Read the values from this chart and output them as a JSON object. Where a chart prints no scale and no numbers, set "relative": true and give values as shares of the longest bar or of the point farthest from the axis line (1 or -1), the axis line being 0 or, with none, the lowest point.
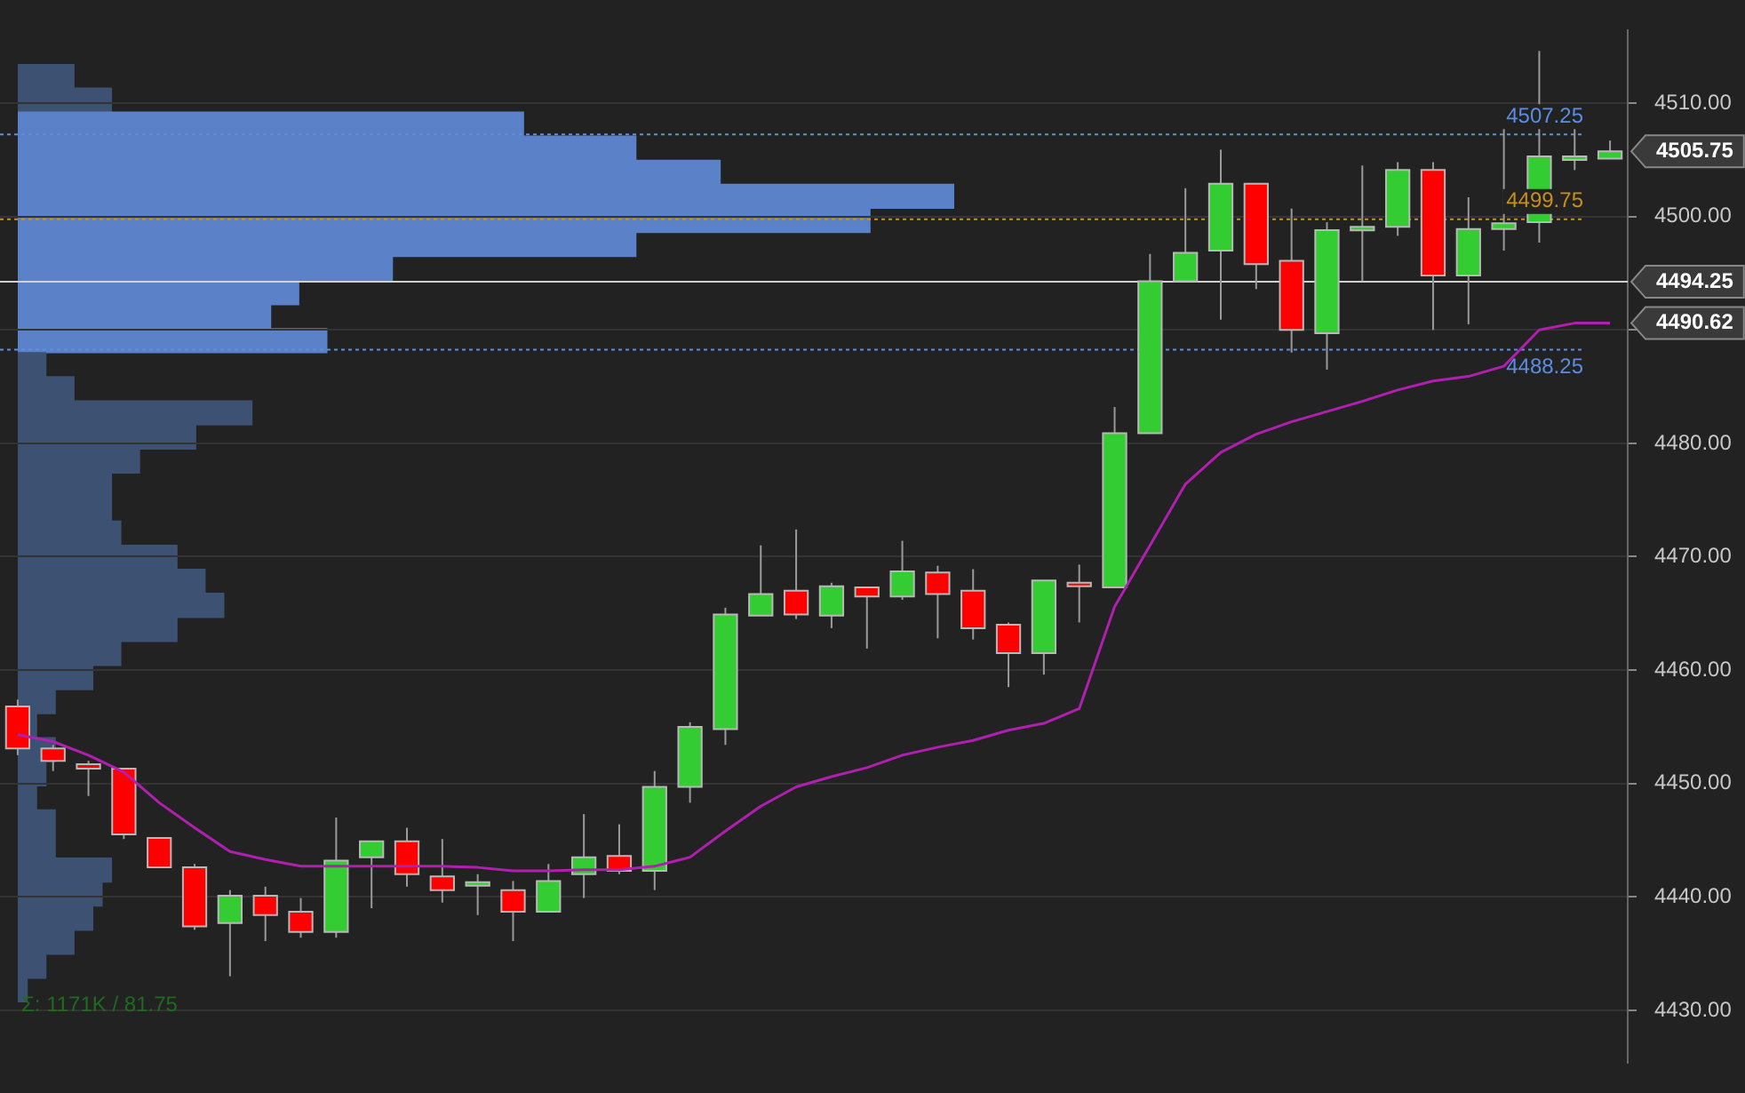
{
  "chart_data": [
    {
      "type": "candlestick",
      "categories": [
        null,
        null,
        null,
        null,
        null,
        null,
        null,
        null,
        null,
        null,
        null,
        null,
        null,
        null,
        null,
        null,
        null,
        null,
        null,
        null,
        null,
        null,
        null,
        null,
        null,
        null,
        null,
        null,
        null,
        null,
        null,
        null,
        null,
        null,
        null,
        null,
        null,
        null,
        null,
        null,
        null,
        null,
        null,
        null,
        null,
        null
      ],
      "ohlc": [
        [
          4456.8,
          4457.4,
          4452.5,
          4453.1
        ],
        [
          4453.1,
          4453.4,
          4451.1,
          4452.0
        ],
        [
          4451.7,
          4452.0,
          4448.9,
          4451.3
        ],
        [
          4451.3,
          4451.3,
          4445.1,
          4445.5
        ],
        [
          4445.2,
          4445.2,
          4442.6,
          4442.6
        ],
        [
          4442.6,
          4442.9,
          4437.1,
          4437.4
        ],
        [
          4437.7,
          4440.6,
          4433.0,
          4440.1
        ],
        [
          4440.1,
          4440.9,
          4436.1,
          4438.4
        ],
        [
          4438.7,
          4439.9,
          4436.4,
          4436.9
        ],
        [
          4436.9,
          4447.0,
          4436.4,
          4443.2
        ],
        [
          4443.5,
          4444.9,
          4439.0,
          4444.9
        ],
        [
          4444.9,
          4446.1,
          4440.9,
          4442.0
        ],
        [
          4441.8,
          4445.1,
          4439.5,
          4440.6
        ],
        [
          4441.0,
          4442.0,
          4438.4,
          4441.3
        ],
        [
          4440.6,
          4441.4,
          4436.1,
          4438.7
        ],
        [
          4438.7,
          4442.9,
          4438.7,
          4441.4
        ],
        [
          4442.0,
          4447.3,
          4439.9,
          4443.5
        ],
        [
          4443.6,
          4446.4,
          4442.0,
          4442.3
        ],
        [
          4442.3,
          4451.1,
          4440.6,
          4449.7
        ],
        [
          4449.7,
          4455.4,
          4448.3,
          4455.0
        ],
        [
          4454.8,
          4465.5,
          4453.4,
          4464.9
        ],
        [
          4464.8,
          4471.0,
          4464.8,
          4466.7
        ],
        [
          4467.0,
          4472.4,
          4464.5,
          4464.9
        ],
        [
          4464.8,
          4467.7,
          4463.7,
          4467.4
        ],
        [
          4467.3,
          4467.3,
          4461.9,
          4466.5
        ],
        [
          4466.5,
          4471.4,
          4466.2,
          4468.7
        ],
        [
          4468.6,
          4469.2,
          4462.8,
          4466.7
        ],
        [
          4467.0,
          4468.9,
          4462.7,
          4463.7
        ],
        [
          4464.0,
          4464.2,
          4458.5,
          4461.5
        ],
        [
          4461.5,
          4467.9,
          4459.6,
          4467.9
        ],
        [
          4467.7,
          4469.3,
          4464.2,
          4467.4
        ],
        [
          4467.3,
          4483.2,
          4467.3,
          4480.9
        ],
        [
          4480.9,
          4496.7,
          4480.9,
          4494.3
        ],
        [
          4494.3,
          4502.5,
          4494.3,
          4496.8
        ],
        [
          4497.0,
          4505.9,
          4490.9,
          4502.9
        ],
        [
          4502.9,
          4502.9,
          4493.6,
          4495.8
        ],
        [
          4496.1,
          4500.7,
          4488.0,
          4490.0
        ],
        [
          4489.7,
          4499.5,
          4486.5,
          4498.8
        ],
        [
          4498.8,
          4504.5,
          4494.3,
          4499.1
        ],
        [
          4499.1,
          4504.8,
          4498.3,
          4504.1
        ],
        [
          4504.1,
          4504.8,
          4490.0,
          4494.8
        ],
        [
          4494.8,
          4501.7,
          4490.5,
          4498.9
        ],
        [
          4498.9,
          4507.8,
          4497.0,
          4499.4
        ],
        [
          4499.5,
          4514.6,
          4497.7,
          4505.3
        ],
        [
          4505.3,
          4507.8,
          4504.1,
          4505.3
        ],
        [
          4505.1,
          4506.7,
          4505.1,
          4505.75
        ]
      ],
      "colors": [
        "#ff0000",
        "#ff0000",
        "#ff0000",
        "#ff0000",
        "#ff0000",
        "#ff0000",
        "#33cc33",
        "#ff0000",
        "#ff0000",
        "#33cc33",
        "#33cc33",
        "#ff0000",
        "#ff0000",
        "#33cc33",
        "#ff0000",
        "#33cc33",
        "#33cc33",
        "#ff0000",
        "#33cc33",
        "#33cc33",
        "#33cc33",
        "#33cc33",
        "#ff0000",
        "#33cc33",
        "#ff0000",
        "#33cc33",
        "#ff0000",
        "#ff0000",
        "#ff0000",
        "#33cc33",
        "#ff0000",
        "#33cc33",
        "#33cc33",
        "#33cc33",
        "#33cc33",
        "#ff0000",
        "#ff0000",
        "#33cc33",
        "#33cc33",
        "#33cc33",
        "#ff0000",
        "#33cc33",
        "#33cc33",
        "#33cc33",
        "#33cc33",
        "#33cc33"
      ],
      "series": [
        {
          "type": "line",
          "color": "#b01fb0",
          "values": [
            4454.3,
            4453.7,
            4452.5,
            4451.0,
            4448.3,
            4446.1,
            4444.0,
            4443.3,
            4442.7,
            4442.7,
            4442.7,
            4442.7,
            4442.7,
            4442.6,
            4442.3,
            4442.3,
            4442.4,
            4442.4,
            4442.7,
            4443.5,
            4445.8,
            4448.0,
            4449.7,
            4450.6,
            4451.4,
            4452.5,
            4453.2,
            4453.8,
            4454.7,
            4455.3,
            4456.6,
            4465.6,
            4471.0,
            4476.4,
            4479.2,
            4480.8,
            4481.9,
            4482.8,
            4483.7,
            4484.7,
            4485.5,
            4485.9,
            4486.8,
            4490.0,
            4490.6,
            4490.6
          ]
        }
      ],
      "ylim": [
        4425.4,
        4516.4
      ],
      "yticks": [
        {
          "value": 4430,
          "label": "4430.00"
        },
        {
          "value": 4440,
          "label": "4440.00"
        },
        {
          "value": 4450,
          "label": "4450.00"
        },
        {
          "value": 4460,
          "label": "4460.00"
        },
        {
          "value": 4470,
          "label": "4470.00"
        },
        {
          "value": 4480,
          "label": "4480.00"
        },
        {
          "value": 4490,
          "label": null
        },
        {
          "value": 4500,
          "label": "4500.00"
        },
        {
          "value": 4510,
          "label": "4510.00"
        }
      ],
      "ref_lines": [
        {
          "axis": "y",
          "value": 4507.25,
          "label": "4507.25",
          "color": "#5b8ee0",
          "line_style": "dotted"
        },
        {
          "axis": "y",
          "value": 4499.75,
          "label": "4499.75",
          "color": "#c8901a",
          "line_style": "dotted"
        },
        {
          "axis": "y",
          "value": 4488.25,
          "label": "4488.25",
          "color": "#5b8ee0",
          "line_style": "dotted"
        },
        {
          "axis": "y",
          "value": 4494.25,
          "label": "4494.25",
          "color": "#d0d0d0",
          "line_style": "solid"
        }
      ],
      "annotations": [
        "4505.75",
        "4490.62",
        "Σ: 1171K / 81.75"
      ],
      "grid": "y",
      "legend": false,
      "tick_labels": "y"
    },
    {
      "type": "bar",
      "orientation": "horizontal",
      "relative": true,
      "categories": [
        null,
        null,
        null,
        null,
        null,
        null,
        null,
        null,
        null,
        null,
        null,
        null,
        null,
        null,
        null,
        null,
        null,
        null,
        null,
        null,
        null,
        null,
        null,
        null,
        null,
        null,
        null,
        null,
        null,
        null,
        null,
        null,
        null,
        null,
        null,
        null,
        null,
        null,
        null
      ],
      "values": [
        0.06,
        0.1,
        0.54,
        0.66,
        0.75,
        1,
        0.91,
        0.66,
        0.4,
        0.3,
        0.27,
        0.33,
        0.03,
        0.06,
        0.25,
        0.19,
        0.13,
        0.1,
        0.1,
        0.11,
        0.17,
        0.2,
        0.22,
        0.17,
        0.11,
        0.08,
        0.04,
        0.02,
        0.04,
        0.03,
        0.02,
        0.04,
        0.04,
        0.1,
        0.09,
        0.08,
        0.06,
        0.03,
        0.01
      ],
      "colors": [
        "#3d5173",
        "#3d5173",
        "#5b82c8",
        "#5b82c8",
        "#5b82c8",
        "#5b82c8",
        "#5b82c8",
        "#5b82c8",
        "#5b82c8",
        "#5b82c8",
        "#5b82c8",
        "#5b82c8",
        "#3d5173",
        "#3d5173",
        "#3d5173",
        "#3d5173",
        "#3d5173",
        "#3d5173",
        "#3d5173",
        "#3d5173",
        "#3d5173",
        "#3d5173",
        "#3d5173",
        "#3d5173",
        "#3d5173",
        "#3d5173",
        "#3d5173",
        "#3d5173",
        "#3d5173",
        "#3d5173",
        "#3d5173",
        "#3d5173",
        "#3d5173",
        "#3d5173",
        "#3d5173",
        "#3d5173",
        "#3d5173",
        "#3d5173",
        "#3d5173"
      ],
      "legend": false,
      "tick_labels": false
    }
  ]
}
